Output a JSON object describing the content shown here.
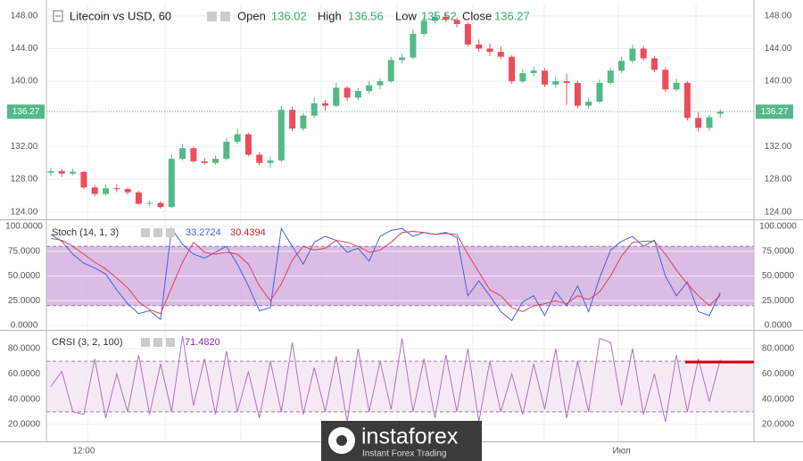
{
  "chart_data": [
    {
      "type": "candlestick",
      "title": "Litecoin vs USD, 60",
      "ohlc_labels": [
        "Open",
        "High",
        "Low",
        "Close"
      ],
      "categories": [
        null,
        null,
        null,
        "12:00",
        null,
        null,
        null,
        null,
        null,
        null,
        null,
        null,
        null,
        null,
        null,
        null,
        null,
        null,
        null,
        null,
        null,
        null,
        null,
        null,
        null,
        null,
        null,
        null,
        null,
        null,
        null,
        null,
        null,
        null,
        null,
        null,
        null,
        null,
        null,
        null,
        null,
        null,
        null,
        null,
        null,
        null,
        null,
        null,
        null,
        null,
        null,
        null,
        "Июл",
        null,
        null,
        null,
        null,
        null,
        null,
        null,
        null,
        null
      ],
      "open": [
        128.8,
        129.0,
        128.7,
        128.9,
        127.0,
        126.2,
        126.9,
        126.8,
        126.4,
        125.0,
        125.1,
        124.6,
        130.5,
        131.8,
        130.2,
        130.0,
        130.5,
        132.6,
        133.5,
        131.0,
        130.0,
        130.3,
        136.5,
        134.2,
        135.8,
        137.3,
        137.0,
        139.2,
        138.0,
        138.8,
        139.5,
        140.0,
        142.6,
        142.9,
        145.8,
        147.4,
        147.9,
        147.5,
        147.0,
        144.5,
        144.0,
        143.6,
        143.0,
        140.0,
        141.0,
        141.3,
        139.6,
        140.0,
        139.8,
        137.0,
        137.5,
        139.8,
        141.3,
        142.5,
        144.0,
        142.8,
        141.4,
        139.0,
        139.8,
        135.5,
        134.3,
        136.02
      ],
      "high": [
        129.4,
        129.3,
        129.3,
        129.0,
        127.3,
        127.3,
        127.4,
        127.0,
        126.6,
        125.4,
        125.3,
        131.0,
        132.3,
        132.0,
        130.6,
        130.9,
        133.0,
        134.2,
        133.7,
        131.3,
        130.8,
        137.0,
        136.9,
        136.1,
        138.0,
        137.7,
        139.8,
        139.4,
        139.2,
        140.0,
        140.4,
        143.0,
        143.4,
        146.4,
        147.9,
        148.5,
        148.3,
        147.8,
        147.2,
        145.1,
        144.6,
        144.3,
        143.2,
        141.5,
        141.8,
        141.6,
        140.6,
        140.9,
        140.1,
        138.0,
        140.2,
        141.7,
        143.0,
        144.5,
        144.3,
        143.1,
        141.7,
        140.3,
        140.0,
        136.2,
        135.9,
        136.56
      ],
      "low": [
        128.4,
        128.3,
        128.5,
        126.8,
        125.9,
        126.0,
        126.4,
        126.1,
        124.9,
        124.7,
        124.4,
        124.5,
        130.3,
        130.0,
        129.8,
        129.8,
        130.3,
        132.3,
        130.8,
        129.7,
        129.4,
        130.1,
        133.9,
        133.9,
        135.5,
        136.4,
        136.8,
        137.6,
        137.7,
        138.5,
        139.0,
        139.8,
        142.2,
        142.7,
        145.5,
        147.1,
        147.2,
        146.6,
        144.2,
        143.6,
        143.1,
        142.7,
        139.7,
        139.8,
        140.6,
        139.3,
        139.2,
        137.1,
        136.7,
        136.6,
        137.3,
        139.6,
        141.0,
        142.2,
        142.5,
        141.1,
        138.7,
        138.8,
        135.2,
        133.8,
        133.9,
        135.52
      ],
      "close": [
        129.0,
        128.7,
        128.9,
        127.0,
        126.2,
        126.9,
        126.8,
        126.4,
        125.0,
        125.1,
        124.6,
        130.5,
        131.8,
        130.2,
        130.0,
        130.5,
        132.6,
        133.5,
        131.0,
        130.0,
        130.3,
        136.5,
        134.2,
        135.8,
        137.3,
        137.0,
        139.2,
        138.0,
        138.8,
        139.5,
        140.0,
        142.6,
        142.9,
        145.8,
        147.4,
        147.9,
        147.5,
        147.0,
        144.5,
        144.0,
        143.6,
        143.0,
        140.0,
        141.0,
        141.3,
        139.6,
        140.0,
        139.8,
        137.0,
        137.5,
        139.8,
        141.3,
        142.5,
        144.0,
        142.8,
        141.4,
        139.0,
        139.8,
        135.5,
        134.3,
        135.6,
        136.27
      ],
      "up_color": "#53b987",
      "down_color": "#eb4d5c",
      "ylim": [
        123.2,
        149.4
      ],
      "yticks": [
        {
          "value": 124,
          "label": "124.00"
        },
        {
          "value": 128,
          "label": "128.00"
        },
        {
          "value": 132,
          "label": "132.00"
        },
        {
          "value": 140,
          "label": "140.00"
        },
        {
          "value": 144,
          "label": "144.00"
        },
        {
          "value": 148,
          "label": "148.00"
        }
      ],
      "grid": true
    },
    {
      "type": "line",
      "title": "Stoch (14, 1, 3)",
      "series": [
        {
          "color": "#4a5ee0",
          "values": [
            92,
            85,
            72,
            63,
            58,
            52,
            36,
            22,
            12,
            15,
            6,
            98,
            82,
            72,
            68,
            74,
            80,
            62,
            40,
            15,
            18,
            98,
            80,
            62,
            84,
            90,
            86,
            74,
            78,
            65,
            90,
            96,
            98,
            90,
            94,
            92,
            94,
            89,
            30,
            45,
            30,
            14,
            5,
            24,
            30,
            10,
            34,
            20,
            40,
            14,
            48,
            76,
            85,
            90,
            80,
            86,
            50,
            30,
            44,
            14,
            10,
            33.2724
          ]
        },
        {
          "color": "#e04050",
          "values": [
            88,
            86,
            80,
            72,
            64,
            57,
            48,
            38,
            24,
            16,
            12,
            38,
            64,
            84,
            74,
            72,
            74,
            72,
            62,
            40,
            25,
            42,
            66,
            80,
            76,
            78,
            86,
            84,
            80,
            74,
            76,
            84,
            94,
            95,
            94,
            92,
            93,
            92,
            72,
            54,
            36,
            30,
            18,
            14,
            20,
            22,
            25,
            22,
            30,
            26,
            34,
            50,
            70,
            84,
            85,
            85,
            72,
            56,
            42,
            30,
            20,
            30.4394
          ]
        }
      ],
      "band": [
        20,
        80
      ],
      "band_color": "#cfa6dc",
      "ylim": [
        -4.5,
        105.4
      ],
      "yticks": [
        {
          "value": 0,
          "label": "0.0000"
        },
        {
          "value": 25,
          "label": "25.0000"
        },
        {
          "value": 50,
          "label": "50.0000"
        },
        {
          "value": 75,
          "label": "75.0000"
        },
        {
          "value": 100,
          "label": "100.0000"
        }
      ],
      "grid": true
    },
    {
      "type": "line",
      "title": "CRSI (3, 2, 100)",
      "series": [
        {
          "color": "#b070c0",
          "values": [
            50,
            62,
            30,
            28,
            72,
            25,
            60,
            30,
            75,
            28,
            68,
            30,
            90,
            35,
            72,
            28,
            78,
            30,
            62,
            25,
            70,
            30,
            85,
            28,
            65,
            30,
            74,
            22,
            80,
            30,
            70,
            32,
            88,
            30,
            72,
            25,
            75,
            30,
            80,
            22,
            70,
            30,
            60,
            28,
            68,
            32,
            80,
            25,
            70,
            30,
            88,
            85,
            35,
            80,
            28,
            60,
            22,
            75,
            30,
            72,
            38,
            71.482
          ],
          "value_labels": [
            null,
            null,
            null,
            null,
            null,
            null,
            null,
            null,
            null,
            null,
            null,
            null,
            null,
            null,
            null,
            null,
            null,
            null,
            null,
            null,
            null,
            null,
            null,
            null,
            null,
            null,
            null,
            null,
            null,
            null,
            null,
            null,
            null,
            null,
            null,
            null,
            null,
            null,
            null,
            null,
            null,
            null,
            null,
            null,
            null,
            null,
            null,
            null,
            null,
            null,
            null,
            null,
            null,
            null,
            null,
            null,
            null,
            null,
            null,
            null,
            null,
            "71.4820"
          ]
        }
      ],
      "band": [
        30,
        70
      ],
      "band_color": "#f3e2f3",
      "ylim": [
        6.6,
        93.4
      ],
      "yticks": [
        {
          "value": 20,
          "label": "20.0000"
        },
        {
          "value": 40,
          "label": "40.0000"
        },
        {
          "value": 60,
          "label": "60.0000"
        },
        {
          "value": 80,
          "label": "80.0000"
        }
      ],
      "grid": true
    }
  ],
  "watermark": {
    "brand": "instaforex",
    "tagline": "Instant Forex Trading"
  }
}
